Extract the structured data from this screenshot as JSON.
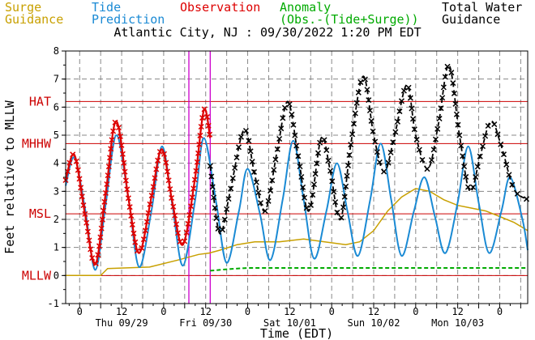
{
  "header": {
    "surge": {
      "line1": "Surge",
      "line2": "Guidance",
      "color": "#c8a000"
    },
    "tide": {
      "line1": "Tide",
      "line2": "Prediction",
      "color": "#1a8ad4"
    },
    "observation": {
      "line1": "Observation",
      "color": "#dd0000"
    },
    "anomaly": {
      "line1": "Anomaly",
      "line2": "(Obs.-(Tide+Surge))",
      "color": "#00aa00"
    },
    "total": {
      "line1": "Total Water",
      "line2": "Guidance",
      "color": "#000000"
    }
  },
  "title": "Atlantic City, NJ : 09/30/2022 1:20 PM EDT",
  "chart_data": {
    "type": "line",
    "title": "Atlantic City, NJ : 09/30/2022 1:20 PM EDT",
    "xlabel": "Time (EDT)",
    "ylabel": "Feet relative to MLLW",
    "ylim": [
      -1,
      8
    ],
    "yticks": [
      -1,
      0,
      1,
      2,
      3,
      4,
      5,
      6,
      7,
      8
    ],
    "xlim_hours": [
      -4,
      128
    ],
    "xtick_labels": [
      {
        "h": 0,
        "label": "0"
      },
      {
        "h": 12,
        "label": "12"
      },
      {
        "h": 24,
        "label": "0"
      },
      {
        "h": 36,
        "label": "12"
      },
      {
        "h": 48,
        "label": "0"
      },
      {
        "h": 60,
        "label": "12"
      },
      {
        "h": 72,
        "label": "0"
      },
      {
        "h": 84,
        "label": "12"
      },
      {
        "h": 96,
        "label": "0"
      },
      {
        "h": 108,
        "label": "12"
      },
      {
        "h": 120,
        "label": "0"
      }
    ],
    "day_labels": [
      {
        "h": 12,
        "label": "Thu 09/29"
      },
      {
        "h": 36,
        "label": "Fri 09/30"
      },
      {
        "h": 60,
        "label": "Sat 10/01"
      },
      {
        "h": 84,
        "label": "Sun 10/02"
      },
      {
        "h": 108,
        "label": "Mon 10/03"
      }
    ],
    "datum_lines": [
      {
        "name": "HAT",
        "value": 6.2
      },
      {
        "name": "MHHW",
        "value": 4.7
      },
      {
        "name": "MSL",
        "value": 2.2
      },
      {
        "name": "MLLW",
        "value": 0.0
      }
    ],
    "vertical_markers": [
      31.2,
      37.3
    ],
    "grid": true,
    "series": [
      {
        "name": "Tide Prediction",
        "color": "#1a8ad4",
        "style": "solid",
        "x": [
          -4,
          -1.5,
          1.5,
          4.5,
          7.5,
          10.5,
          14,
          17,
          20.5,
          23.5,
          26.5,
          29.5,
          33,
          35.5,
          39,
          42,
          45.5,
          48,
          51.5,
          54.5,
          58,
          61,
          64,
          67,
          70.5,
          73.5,
          76.5,
          79.5,
          83,
          86,
          89,
          92,
          95.5,
          98.5,
          101.5,
          104.5,
          108,
          111,
          114,
          117,
          120.5,
          123,
          126.5,
          128
        ],
        "y": [
          3.2,
          4.2,
          2.4,
          0.2,
          2.6,
          5.0,
          2.7,
          0.3,
          2.3,
          4.6,
          2.5,
          0.35,
          2.7,
          4.9,
          2.6,
          0.45,
          2.3,
          3.8,
          2.2,
          0.55,
          2.7,
          4.8,
          2.7,
          0.6,
          2.3,
          4.0,
          2.3,
          0.7,
          2.7,
          4.7,
          2.7,
          0.7,
          2.3,
          3.5,
          2.1,
          0.8,
          2.6,
          4.6,
          2.6,
          0.8,
          2.3,
          3.5,
          2.0,
          0.9
        ]
      },
      {
        "name": "Observation",
        "color": "#dd0000",
        "style": "solid",
        "x": [
          -4,
          -1.5,
          1.5,
          4.5,
          7.5,
          10.5,
          14,
          17,
          20.5,
          23.5,
          26.5,
          29.5,
          33,
          35.5,
          37.3
        ],
        "y": [
          3.4,
          4.3,
          2.2,
          0.4,
          3.0,
          5.5,
          2.7,
          0.8,
          2.8,
          4.5,
          2.6,
          1.1,
          3.5,
          5.9,
          4.9
        ]
      },
      {
        "name": "Surge Guidance",
        "color": "#c8a000",
        "style": "solid",
        "x": [
          -4,
          6,
          8,
          20,
          28,
          34,
          37,
          40,
          45,
          50,
          57,
          64,
          70,
          76,
          80,
          84,
          88,
          92,
          96,
          100,
          104,
          108,
          112,
          116,
          120,
          124,
          128
        ],
        "y": [
          0.0,
          0.0,
          0.25,
          0.3,
          0.55,
          0.75,
          0.8,
          0.9,
          1.1,
          1.2,
          1.2,
          1.3,
          1.2,
          1.1,
          1.2,
          1.6,
          2.3,
          2.8,
          3.1,
          3.0,
          2.7,
          2.5,
          2.4,
          2.3,
          2.1,
          1.9,
          1.6
        ]
      },
      {
        "name": "Anomaly",
        "color": "#00aa00",
        "style": "dashed",
        "x": [
          37.3,
          40,
          44,
          48,
          128
        ],
        "y": [
          0.17,
          0.2,
          0.24,
          0.27,
          0.27
        ]
      },
      {
        "name": "Total Water Guidance",
        "color": "#000000",
        "style": "dashed-x",
        "x": [
          37.3,
          40,
          43,
          47,
          50,
          53,
          56.5,
          59.5,
          62.5,
          65.5,
          69,
          71.5,
          74.5,
          77.5,
          81,
          84,
          87,
          90,
          93.5,
          96,
          99.5,
          102.5,
          105.5,
          108.5,
          111.5,
          114.5,
          117.5,
          120.5,
          124,
          128
        ],
        "y": [
          3.9,
          1.5,
          3.0,
          5.2,
          3.6,
          2.3,
          4.5,
          6.2,
          4.2,
          2.3,
          4.9,
          3.8,
          2.0,
          4.7,
          7.1,
          5.0,
          3.7,
          5.0,
          6.8,
          5.0,
          3.8,
          5.4,
          7.5,
          5.0,
          3.0,
          4.3,
          5.5,
          4.6,
          3.1,
          2.7
        ]
      }
    ]
  }
}
